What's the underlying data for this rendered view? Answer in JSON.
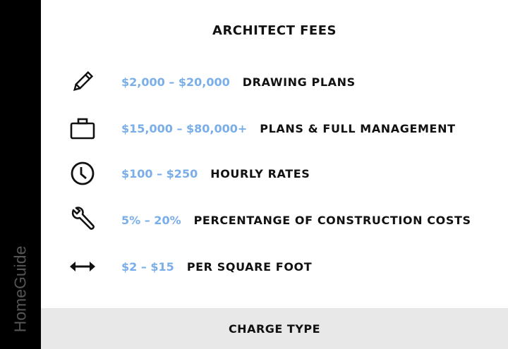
{
  "brand": "HomeGuide",
  "title": "ARCHITECT FEES",
  "colors": {
    "price": "#7aaee8",
    "sidebar": "#000000",
    "footer": "#e8e8e8"
  },
  "rows": [
    {
      "icon": "pencil-icon",
      "price": "$2,000 – $20,000",
      "label": "DRAWING PLANS"
    },
    {
      "icon": "briefcase-icon",
      "price": "$15,000 – $80,000+",
      "label": "PLANS & FULL MANAGEMENT"
    },
    {
      "icon": "clock-icon",
      "price": "$100 – $250",
      "label": "HOURLY RATES"
    },
    {
      "icon": "wrench-icon",
      "price": "5% – 20%",
      "label": "PERCENTANGE OF CONSTRUCTION COSTS"
    },
    {
      "icon": "double-arrow-icon",
      "price": "$2 – $15",
      "label": "PER SQUARE FOOT"
    }
  ],
  "footer": "CHARGE TYPE"
}
